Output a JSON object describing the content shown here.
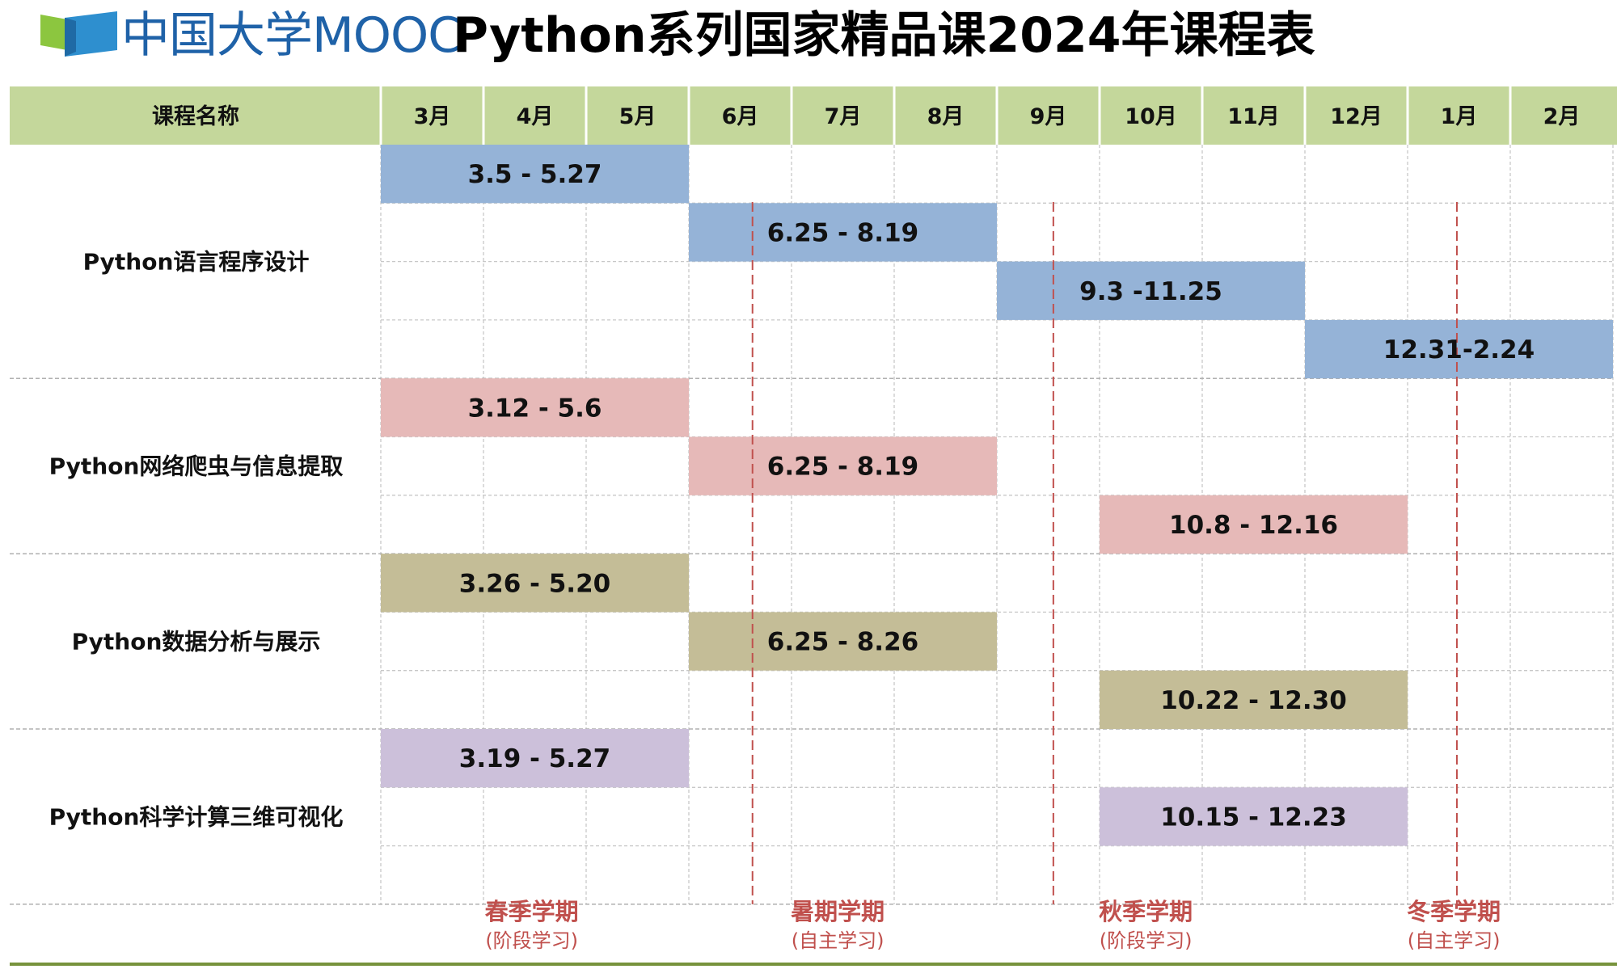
{
  "header": {
    "logo_text": "中国大学MOOC",
    "title": "Python系列国家精品课2024年课程表"
  },
  "colors": {
    "header_fill": "#c4d79b",
    "blue": "#95b3d7",
    "red": "#e6b9b8",
    "olive": "#c4bd97",
    "purple": "#ccc0da",
    "divider": "#c0504d",
    "semester_text": "#c0504d",
    "bottom_rule": "#77933c"
  },
  "chart_data": {
    "type": "gantt",
    "name_header": "课程名称",
    "months": [
      "3月",
      "4月",
      "5月",
      "6月",
      "7月",
      "8月",
      "9月",
      "10月",
      "11月",
      "12月",
      "1月",
      "2月"
    ],
    "courses": [
      {
        "name": "Python语言程序设计",
        "color": "#95b3d7",
        "lanes": 4,
        "sessions": [
          {
            "label": "3.5 - 5.27",
            "start_month": "3月",
            "end_month": "5月"
          },
          {
            "label": "6.25 - 8.19",
            "start_month": "6月",
            "end_month": "8月"
          },
          {
            "label": "9.3 -11.25",
            "start_month": "9月",
            "end_month": "11月"
          },
          {
            "label": "12.31-2.24",
            "start_month": "12月",
            "end_month": "2月"
          }
        ]
      },
      {
        "name": "Python网络爬虫与信息提取",
        "color": "#e6b9b8",
        "lanes": 3,
        "sessions": [
          {
            "label": "3.12 - 5.6",
            "start_month": "3月",
            "end_month": "5月"
          },
          {
            "label": "6.25 - 8.19",
            "start_month": "6月",
            "end_month": "8月"
          },
          {
            "label": "10.8 - 12.16",
            "start_month": "10月",
            "end_month": "12月"
          }
        ]
      },
      {
        "name": "Python数据分析与展示",
        "color": "#c4bd97",
        "lanes": 3,
        "sessions": [
          {
            "label": "3.26 - 5.20",
            "start_month": "3月",
            "end_month": "5月"
          },
          {
            "label": "6.25 - 8.26",
            "start_month": "6月",
            "end_month": "8月"
          },
          {
            "label": "10.22 - 12.30",
            "start_month": "10月",
            "end_month": "12月"
          }
        ]
      },
      {
        "name": "Python科学计算三维可视化",
        "color": "#ccc0da",
        "lanes": 3,
        "sessions": [
          {
            "label": "3.19 - 5.27",
            "start_month": "3月",
            "end_month": "5月"
          },
          {
            "label": "10.15 - 12.23",
            "start_month": "10月",
            "end_month": "12月"
          }
        ]
      }
    ],
    "semesters": [
      {
        "name": "春季学期",
        "mode": "(阶段学习)"
      },
      {
        "name": "暑期学期",
        "mode": "(自主学习)"
      },
      {
        "name": "秋季学期",
        "mode": "(阶段学习)"
      },
      {
        "name": "冬季学期",
        "mode": "(自主学习)"
      }
    ]
  }
}
